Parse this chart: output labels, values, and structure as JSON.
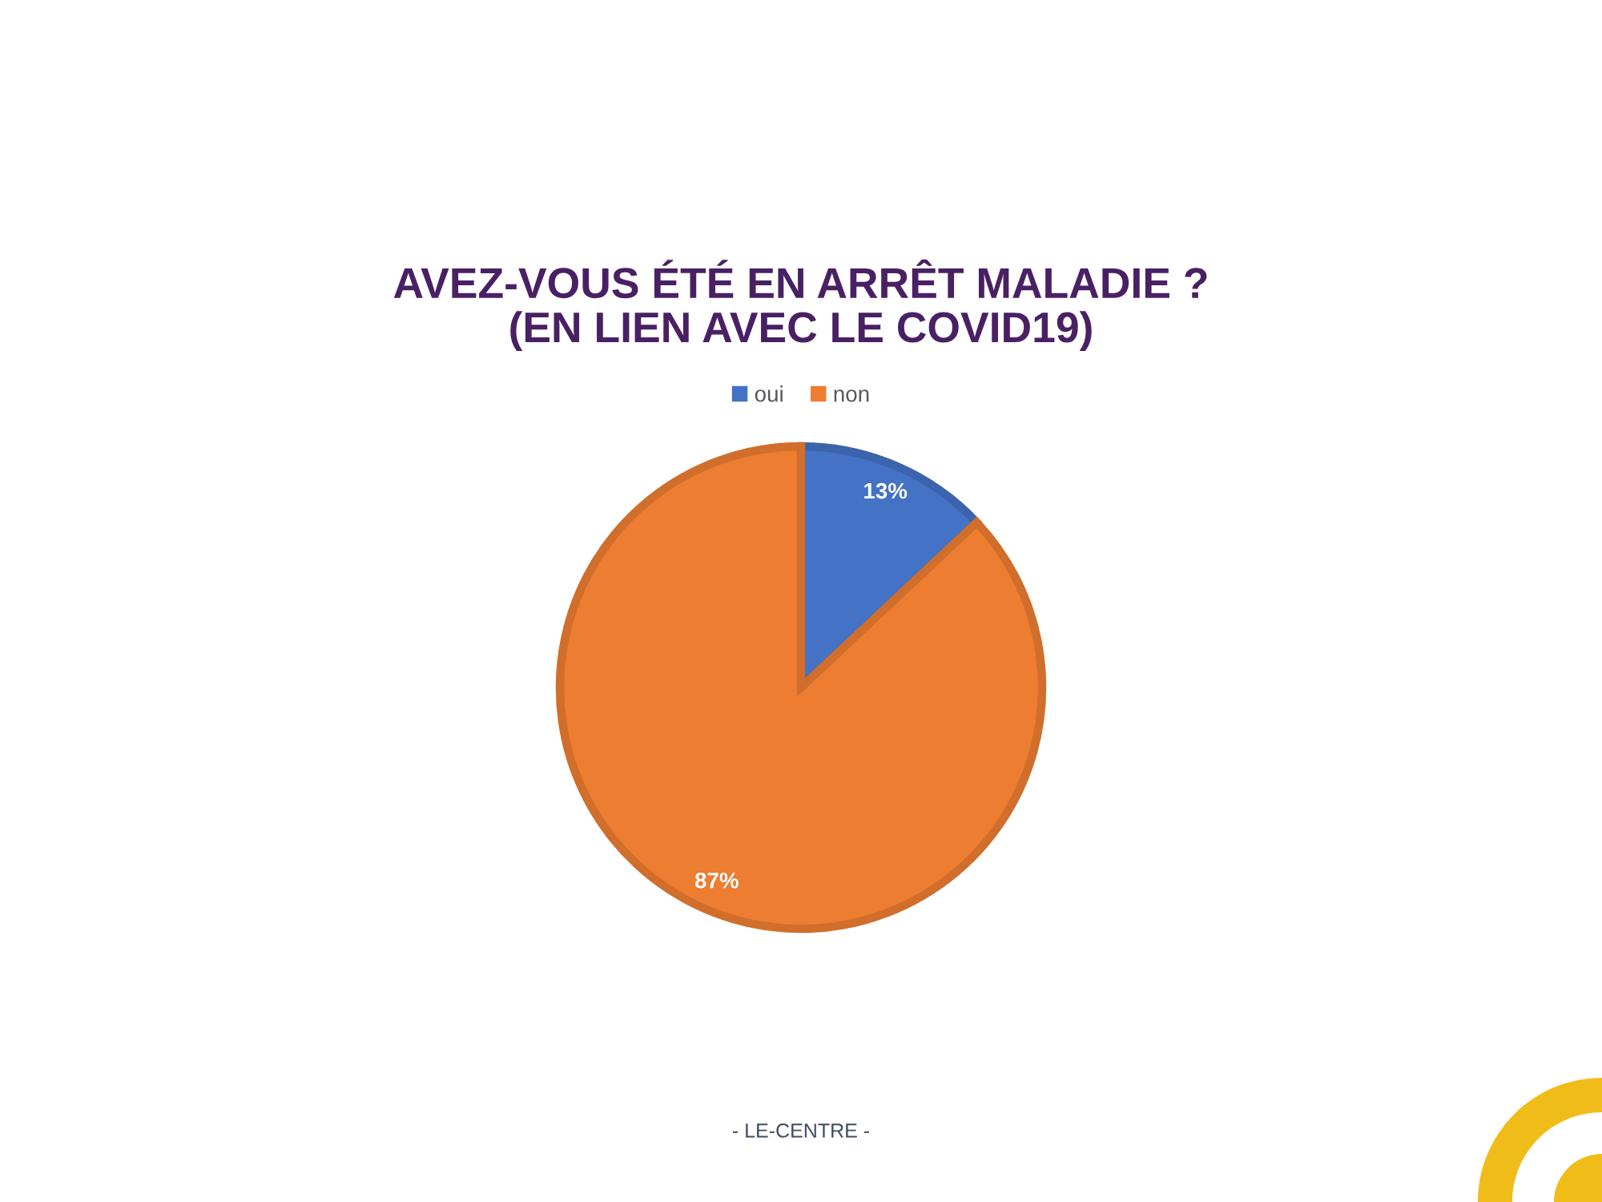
{
  "chart_data": {
    "type": "pie",
    "title": "AVEZ-VOUS ÉTÉ EN ARRÊT MALADIE ?\n(EN LIEN AVEC LE COVID19)",
    "categories": [
      "oui",
      "non"
    ],
    "values": [
      13,
      87
    ],
    "colors": [
      "#4472c4",
      "#ed7d31"
    ],
    "value_labels": [
      "13%",
      "87%"
    ],
    "legend": "top",
    "annotations": [
      "- LE-CENTRE -"
    ]
  }
}
